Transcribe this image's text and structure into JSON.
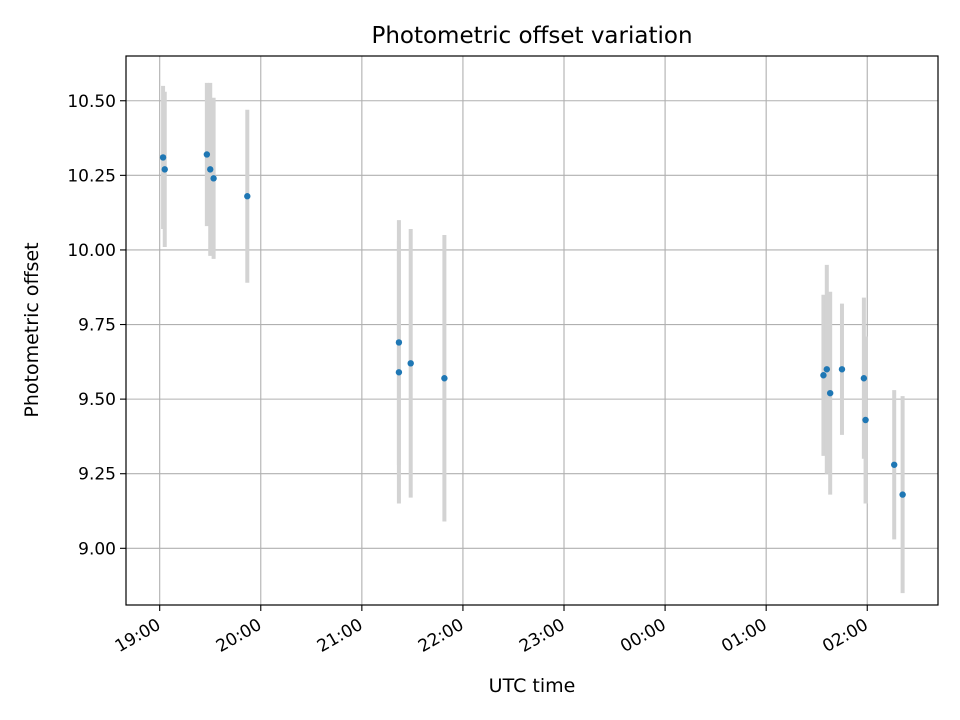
{
  "chart_data": {
    "type": "scatter",
    "title": "Photometric offset variation",
    "xlabel": "UTC time",
    "ylabel": "Photometric offset",
    "x_ticks": [
      "19:00",
      "20:00",
      "21:00",
      "22:00",
      "23:00",
      "00:00",
      "01:00",
      "02:00"
    ],
    "y_ticks": [
      "9.00",
      "9.25",
      "9.50",
      "9.75",
      "10.00",
      "10.25",
      "10.50"
    ],
    "x_range": [
      "18:40",
      "02:42"
    ],
    "ylim": [
      8.81,
      10.65
    ],
    "grid": true,
    "colors": {
      "point": "#1f77b4",
      "errorbar": "#d3d3d3",
      "grid": "#b0b0b0"
    },
    "points": [
      {
        "x": "19:02",
        "y": 10.31,
        "yerr": 0.24
      },
      {
        "x": "19:03",
        "y": 10.27,
        "yerr": 0.26
      },
      {
        "x": "19:28",
        "y": 10.32,
        "yerr": 0.24
      },
      {
        "x": "19:30",
        "y": 10.27,
        "yerr": 0.29
      },
      {
        "x": "19:32",
        "y": 10.24,
        "yerr": 0.27
      },
      {
        "x": "19:52",
        "y": 10.18,
        "yerr": 0.29
      },
      {
        "x": "21:22",
        "y": 9.69,
        "yerr": 0.41
      },
      {
        "x": "21:22",
        "y": 9.59,
        "yerr": 0.44
      },
      {
        "x": "21:29",
        "y": 9.62,
        "yerr": 0.45
      },
      {
        "x": "21:49",
        "y": 9.57,
        "yerr": 0.48
      },
      {
        "x": "01:34",
        "y": 9.58,
        "yerr": 0.27
      },
      {
        "x": "01:36",
        "y": 9.6,
        "yerr": 0.35
      },
      {
        "x": "01:38",
        "y": 9.52,
        "yerr": 0.34
      },
      {
        "x": "01:45",
        "y": 9.6,
        "yerr": 0.22
      },
      {
        "x": "01:58",
        "y": 9.57,
        "yerr": 0.27
      },
      {
        "x": "01:59",
        "y": 9.43,
        "yerr": 0.28
      },
      {
        "x": "02:16",
        "y": 9.28,
        "yerr": 0.25
      },
      {
        "x": "02:21",
        "y": 9.18,
        "yerr": 0.33
      }
    ]
  }
}
